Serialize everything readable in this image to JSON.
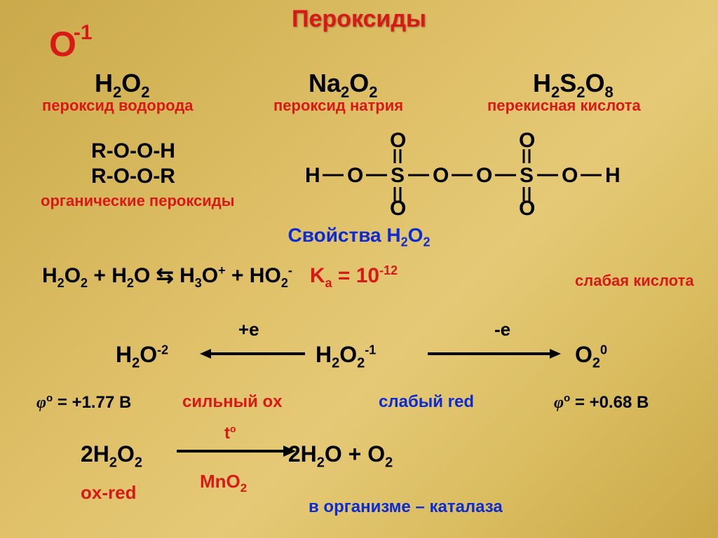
{
  "colors": {
    "red": "#d91818",
    "blue": "#0b2bd6",
    "black": "#000000",
    "bg_start": "#c9a94a",
    "bg_end": "#caa848"
  },
  "title": "Пероксиды",
  "oxidation_state": {
    "element": "O",
    "charge": "-1"
  },
  "examples": {
    "hp": {
      "formula_html": "H<sub>2</sub>O<sub>2</sub>",
      "label": "пероксид водорода"
    },
    "nap": {
      "formula_html": "Na<sub>2</sub>O<sub>2</sub>",
      "label": "пероксид натрия"
    },
    "pds": {
      "formula_html": "H<sub>2</sub>S<sub>2</sub>O<sub>8</sub>",
      "label": "перекисная кислота"
    }
  },
  "organic": {
    "line1": "R-O-O-H",
    "line2": "R-O-O-R",
    "label": "органические пероксиды"
  },
  "persulfuric_structure": {
    "chain": [
      "H",
      "O",
      "S",
      "O",
      "O",
      "S",
      "O",
      "H"
    ],
    "double_bond_atoms": "O",
    "on_each_S": "two double-bonded O (up and down)"
  },
  "properties_title_html": "Свойства H<sub>2</sub>O<sub>2</sub>",
  "acid_equilibrium": {
    "equation_html": "H<sub>2</sub>O<sub>2</sub> + H<sub>2</sub>O ⇆ H<sub>3</sub>O<sup>+</sup> + HO<sub>2</sub><sup>-</sup>",
    "ka_html": "K<sub>a</sub> = 10<sup>-12</sup>",
    "comment": "слабая кислота"
  },
  "redox": {
    "center_html": "H<sub>2</sub>O<sub>2</sub><sup>-1</sup>",
    "plus_e": "+e",
    "left_html": "H<sub>2</sub>O<sup>-2</sup>",
    "minus_e": "-e",
    "right_html": "O<sub>2</sub><sup>0</sup>",
    "phi_ox_html": "φ<sup>o</sup> = +1.77 B",
    "ox_label": "сильный ox",
    "red_label": "слабый red",
    "phi_red_html": "φ<sup>o</sup> = +0.68 B"
  },
  "decomposition": {
    "equation_html": "2H<sub>2</sub>O<sub>2</sub>",
    "products_html": "2H<sub>2</sub>O + O<sub>2</sub>",
    "condition_html": "t<sup>o</sup>",
    "catalyst_html": "MnO<sub>2</sub>",
    "type": "ox-red",
    "biological": "в организме – каталаза"
  }
}
